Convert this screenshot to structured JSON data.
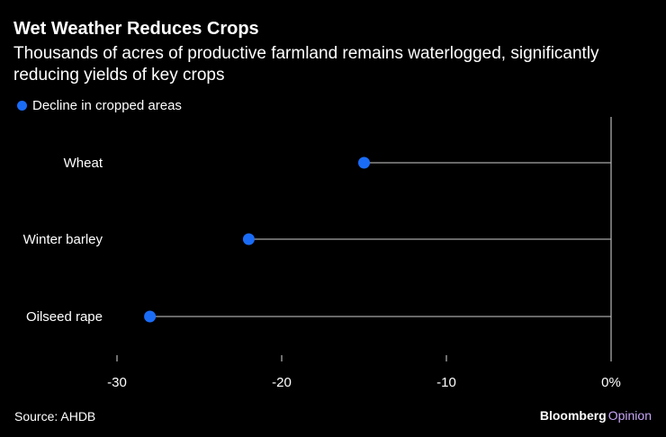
{
  "title": "Wet Weather Reduces Crops",
  "subtitle": "Thousands of acres of productive farmland remains waterlogged, significantly reducing yields of key crops",
  "legend": {
    "label": "Decline in cropped areas",
    "color": "#1a6cf7"
  },
  "source": "Source: AHDB",
  "brand": {
    "name": "Bloomberg",
    "section": "Opinion"
  },
  "chart_data": {
    "type": "dot",
    "title": "Wet Weather Reduces Crops",
    "categories": [
      "Wheat",
      "Winter barley",
      "Oilseed rape"
    ],
    "series": [
      {
        "name": "Decline in cropped areas",
        "values": [
          -15,
          -22,
          -28
        ],
        "color": "#1a6cf7"
      }
    ],
    "xlim": [
      -30,
      0
    ],
    "xticks": [
      -30,
      -20,
      -10,
      0
    ],
    "xtick_labels": [
      "-30",
      "-20",
      "-10",
      "0%"
    ],
    "xlabel": "",
    "ylabel": "",
    "baseline": 0,
    "grid": false
  }
}
